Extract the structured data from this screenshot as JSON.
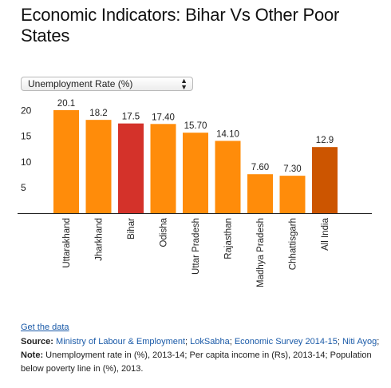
{
  "title": "Economic Indicators: Bihar Vs Other Poor States",
  "selector": {
    "value": "Unemployment Rate (%)"
  },
  "footer": {
    "get_data": "Get the data",
    "source_label": "Source:",
    "sources": [
      "Ministry of Labour & Employment",
      "LokSabha",
      "Economic Survey 2014-15",
      "Niti Ayog"
    ],
    "note_label": "Note:",
    "note_text": "Unemployment rate in (%), 2013-14; Per capita income in (Rs), 2013-14; Population below poverty line in (%), 2013."
  },
  "colors": {
    "default": "#ff8c0a",
    "bihar": "#d4322a",
    "all_india": "#cc5500",
    "axis": "#222222"
  },
  "chart_data": {
    "type": "bar",
    "categories": [
      "Uttarakhand",
      "Jharkhand",
      "Bihar",
      "Odisha",
      "Uttar Pradesh",
      "Rajasthan",
      "Madhya Pradesh",
      "Chhattisgarh",
      "All India"
    ],
    "values": [
      20.1,
      18.2,
      17.5,
      17.4,
      15.7,
      14.1,
      7.6,
      7.3,
      12.9
    ],
    "data_labels": [
      "20.1",
      "18.2",
      "17.5",
      "17.40",
      "15.70",
      "14.10",
      "7.60",
      "7.30",
      "12.9"
    ],
    "bar_colors": [
      "default",
      "default",
      "bihar",
      "default",
      "default",
      "default",
      "default",
      "default",
      "all_india"
    ],
    "yticks": [
      5,
      10,
      15,
      20
    ],
    "ylim": [
      0,
      22
    ],
    "grid": false,
    "title": "",
    "xlabel": "",
    "ylabel": ""
  }
}
